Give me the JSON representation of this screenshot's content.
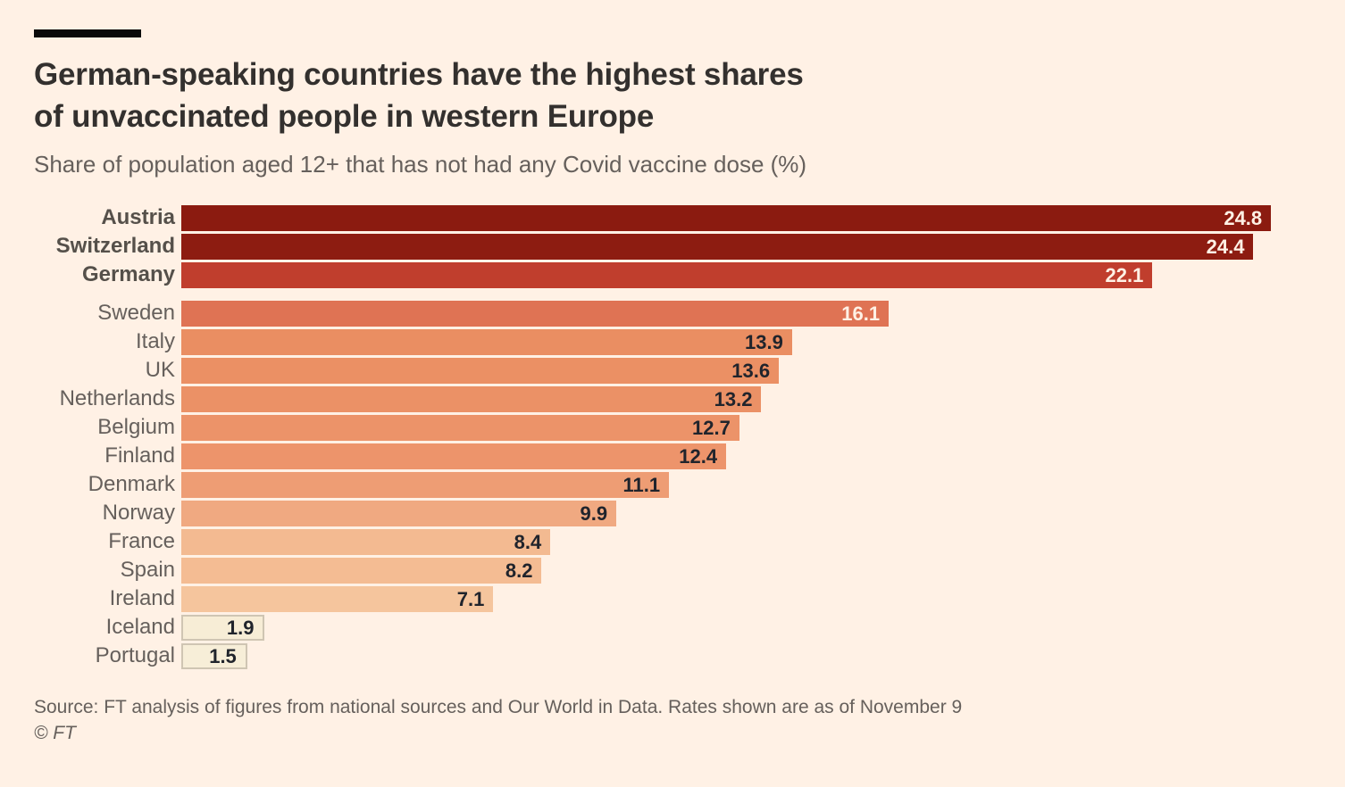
{
  "page": {
    "background_color": "#FFF1E5",
    "accent_bar_color": "#0A0A0A",
    "title_line1": "German-speaking countries have the highest shares",
    "title_line2": "of unvaccinated people in western Europe",
    "subtitle": "Share of population aged 12+ that has not had any Covid vaccine dose (%)",
    "source_line": "Source: FT analysis of figures from national sources and Our World in Data. Rates shown are as of November 9",
    "copyright": "© FT"
  },
  "chart_data": {
    "type": "bar",
    "orientation": "horizontal",
    "title": "German-speaking countries have the highest shares of unvaccinated people in western Europe",
    "subtitle": "Share of population aged 12+ that has not had any Covid vaccine dose (%)",
    "xlabel": "",
    "ylabel": "",
    "xlim": [
      0,
      25
    ],
    "grid": false,
    "legend": false,
    "value_label_position": "inside-end",
    "categories": [
      "Austria",
      "Switzerland",
      "Germany",
      "Sweden",
      "Italy",
      "UK",
      "Netherlands",
      "Belgium",
      "Finland",
      "Denmark",
      "Norway",
      "France",
      "Spain",
      "Ireland",
      "Iceland",
      "Portugal"
    ],
    "values": [
      24.8,
      24.4,
      22.1,
      16.1,
      13.9,
      13.6,
      13.2,
      12.7,
      12.4,
      11.1,
      9.9,
      8.4,
      8.2,
      7.1,
      1.9,
      1.5
    ],
    "rows": [
      {
        "label": "Austria",
        "value": 24.8,
        "color": "#8B1B10",
        "value_color": "#FFF1E5",
        "label_bold": true
      },
      {
        "label": "Switzerland",
        "value": 24.4,
        "color": "#8D1C11",
        "value_color": "#FFF1E5",
        "label_bold": true
      },
      {
        "label": "Germany",
        "value": 22.1,
        "color": "#C03E2D",
        "value_color": "#FFF1E5",
        "label_bold": true
      },
      {
        "label": "Sweden",
        "value": 16.1,
        "color": "#DF7354",
        "value_color": "#FFF1E5",
        "group_gap": true
      },
      {
        "label": "Italy",
        "value": 13.9,
        "color": "#EA8E62",
        "value_color": "#20242C"
      },
      {
        "label": "UK",
        "value": 13.6,
        "color": "#EB9064",
        "value_color": "#20242C"
      },
      {
        "label": "Netherlands",
        "value": 13.2,
        "color": "#EB9166",
        "value_color": "#20242C"
      },
      {
        "label": "Belgium",
        "value": 12.7,
        "color": "#EC9369",
        "value_color": "#20242C"
      },
      {
        "label": "Finland",
        "value": 12.4,
        "color": "#ED946B",
        "value_color": "#20242C"
      },
      {
        "label": "Denmark",
        "value": 11.1,
        "color": "#EE9D74",
        "value_color": "#20242C"
      },
      {
        "label": "Norway",
        "value": 9.9,
        "color": "#F0A981",
        "value_color": "#20242C"
      },
      {
        "label": "France",
        "value": 8.4,
        "color": "#F3BA91",
        "value_color": "#20242C"
      },
      {
        "label": "Spain",
        "value": 8.2,
        "color": "#F4BC93",
        "value_color": "#20242C"
      },
      {
        "label": "Ireland",
        "value": 7.1,
        "color": "#F5C59D",
        "value_color": "#20242C"
      },
      {
        "label": "Iceland",
        "value": 1.9,
        "color": "#F7EDD6",
        "value_color": "#20242C",
        "outlined": true
      },
      {
        "label": "Portugal",
        "value": 1.5,
        "color": "#F7EED8",
        "value_color": "#20242C",
        "outlined": true
      }
    ]
  }
}
